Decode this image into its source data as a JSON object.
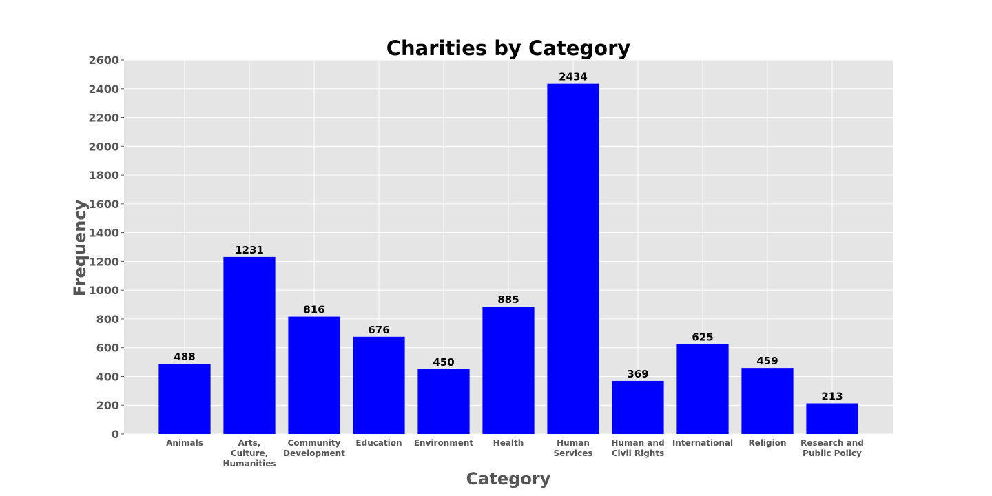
{
  "chart_data": {
    "type": "bar",
    "title": "Charities by Category",
    "xlabel": "Category",
    "ylabel": "Frequency",
    "categories": [
      "Animals",
      "Arts, Culture, Humanities",
      "Community Development",
      "Education",
      "Environment",
      "Health",
      "Human Services",
      "Human and Civil Rights",
      "International",
      "Religion",
      "Research and Public Policy"
    ],
    "category_label_lines": [
      [
        "Animals"
      ],
      [
        "Arts,",
        "Culture,",
        "Humanities"
      ],
      [
        "Community",
        "Development"
      ],
      [
        "Education"
      ],
      [
        "Environment"
      ],
      [
        "Health"
      ],
      [
        "Human",
        "Services"
      ],
      [
        "Human and",
        "Civil Rights"
      ],
      [
        "International"
      ],
      [
        "Religion"
      ],
      [
        "Research and",
        "Public Policy"
      ]
    ],
    "values": [
      488,
      1231,
      816,
      676,
      450,
      885,
      2434,
      369,
      625,
      459,
      213
    ],
    "ylim": [
      0,
      2600
    ],
    "yticks": [
      0,
      200,
      400,
      600,
      800,
      1000,
      1200,
      1400,
      1600,
      1800,
      2000,
      2200,
      2400,
      2600
    ],
    "grid": true,
    "bar_color": "#0000ff",
    "plot_background": "#e5e5e5",
    "data_labels": true
  }
}
